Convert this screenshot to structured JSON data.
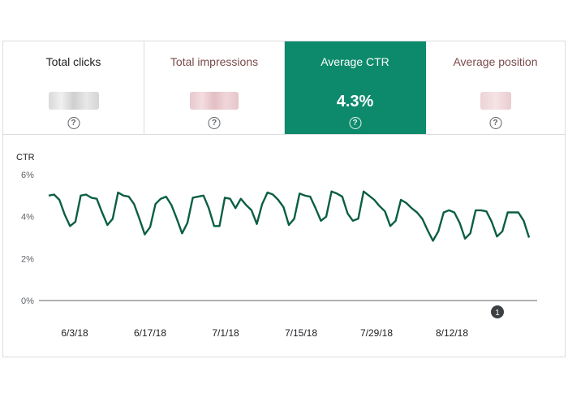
{
  "metrics": [
    {
      "label": "Total clicks",
      "value": "",
      "active": false
    },
    {
      "label": "Total impressions",
      "value": "",
      "active": false
    },
    {
      "label": "Average CTR",
      "value": "4.3%",
      "active": true
    },
    {
      "label": "Average position",
      "value": "",
      "active": false
    }
  ],
  "help_glyph": "?",
  "colors": {
    "accent": "#0d8a6c",
    "line": "#0b5e45",
    "label_tint": "#7a4a4a"
  },
  "icons": [
    "help-icon",
    "annotation-marker"
  ],
  "annotation": {
    "label": "1"
  },
  "chart_data": {
    "type": "line",
    "ylabel": "CTR",
    "yticks": [
      "6%",
      "4%",
      "2%",
      "0%"
    ],
    "ylim": [
      0,
      6
    ],
    "xticks": [
      "6/3/18",
      "6/17/18",
      "7/1/18",
      "7/15/18",
      "7/29/18",
      "8/12/18"
    ],
    "grid": false,
    "series": [
      {
        "values": [
          5.0,
          5.05,
          4.8,
          4.1,
          3.55,
          3.75,
          5.0,
          5.05,
          4.9,
          4.85,
          4.2,
          3.6,
          3.9,
          5.15,
          5.0,
          4.95,
          4.6,
          3.9,
          3.15,
          3.5,
          4.6,
          4.85,
          4.95,
          4.55,
          3.9,
          3.2,
          3.7,
          4.9,
          4.95,
          5.0,
          4.4,
          3.55,
          3.55,
          4.9,
          4.85,
          4.4,
          4.85,
          4.55,
          4.3,
          3.65,
          4.6,
          5.15,
          5.05,
          4.8,
          4.45,
          3.6,
          3.9,
          5.1,
          5.0,
          4.95,
          4.4,
          3.8,
          4.0,
          5.2,
          5.1,
          4.95,
          4.15,
          3.8,
          3.9,
          5.2,
          5.0,
          4.8,
          4.5,
          4.25,
          3.55,
          3.8,
          4.8,
          4.65,
          4.4,
          4.2,
          3.9,
          3.35,
          2.85,
          3.3,
          4.2,
          4.3,
          4.2,
          3.7,
          2.95,
          3.2,
          4.3,
          4.3,
          4.25,
          3.75,
          3.05,
          3.3,
          4.2,
          4.2,
          4.2,
          3.8,
          3.0
        ]
      }
    ]
  }
}
